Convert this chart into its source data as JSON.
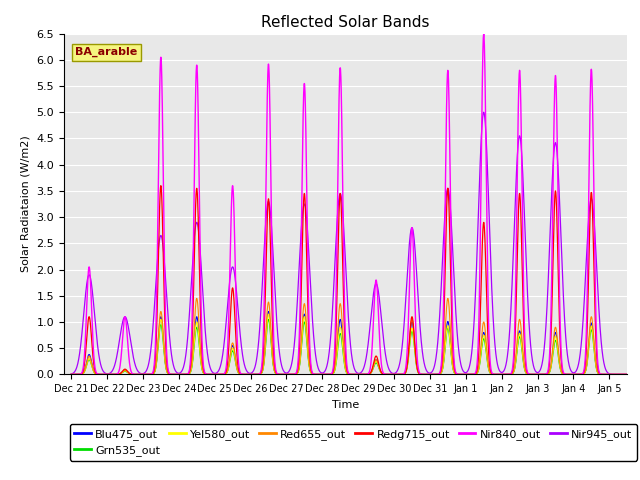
{
  "title": "Reflected Solar Bands",
  "xlabel": "Time",
  "ylabel": "Solar Radiataion (W/m2)",
  "annotation": "BA_arable",
  "ylim": [
    0,
    6.5
  ],
  "background_color": "#e8e8e8",
  "series_order": [
    "Blu475_out",
    "Grn535_out",
    "Yel580_out",
    "Red655_out",
    "Redg715_out",
    "Nir840_out",
    "Nir945_out"
  ],
  "series": {
    "Blu475_out": {
      "color": "#0000ff"
    },
    "Grn535_out": {
      "color": "#00dd00"
    },
    "Yel580_out": {
      "color": "#ffff00"
    },
    "Red655_out": {
      "color": "#ff8800"
    },
    "Redg715_out": {
      "color": "#ff0000"
    },
    "Nir840_out": {
      "color": "#ff00ff"
    },
    "Nir945_out": {
      "color": "#aa00ff"
    }
  },
  "tick_labels": [
    "Dec 21",
    "Dec 22",
    "Dec 23",
    "Dec 24",
    "Dec 25",
    "Dec 26",
    "Dec 27",
    "Dec 28",
    "Dec 29",
    "Dec 30",
    "Dec 31",
    "Jan 1",
    "Jan 2",
    "Jan 3",
    "Jan 4",
    "Jan 5"
  ],
  "sigma_narrow": 0.07,
  "sigma_wide": 0.15,
  "day_peaks": [
    {
      "day": 0,
      "blu": 0.38,
      "grn": 0.28,
      "yel": 0.3,
      "red": 0.35,
      "redg": 1.1,
      "nir840": 2.05,
      "nir945": 1.9
    },
    {
      "day": 1,
      "blu": 0.08,
      "grn": 0.06,
      "yel": 0.07,
      "red": 0.08,
      "redg": 0.1,
      "nir840": 1.1,
      "nir945": 1.1
    },
    {
      "day": 2,
      "blu": 1.1,
      "grn": 0.95,
      "yel": 1.05,
      "red": 1.2,
      "redg": 3.6,
      "nir840": 6.05,
      "nir945": 2.65
    },
    {
      "day": 3,
      "blu": 1.1,
      "grn": 0.9,
      "yel": 1.0,
      "red": 1.45,
      "redg": 3.55,
      "nir840": 5.9,
      "nir945": 2.9
    },
    {
      "day": 4,
      "blu": 0.55,
      "grn": 0.45,
      "yel": 0.5,
      "red": 0.6,
      "redg": 1.65,
      "nir840": 3.6,
      "nir945": 2.05
    },
    {
      "day": 5,
      "blu": 1.2,
      "grn": 1.05,
      "yel": 1.15,
      "red": 1.38,
      "redg": 3.35,
      "nir840": 5.92,
      "nir945": 3.3
    },
    {
      "day": 6,
      "blu": 1.15,
      "grn": 1.0,
      "yel": 1.1,
      "red": 1.35,
      "redg": 3.45,
      "nir840": 5.55,
      "nir945": 3.25
    },
    {
      "day": 7,
      "blu": 1.05,
      "grn": 0.78,
      "yel": 0.9,
      "red": 1.35,
      "redg": 3.45,
      "nir840": 5.85,
      "nir945": 3.45
    },
    {
      "day": 8,
      "blu": 0.28,
      "grn": 0.22,
      "yel": 0.25,
      "red": 0.28,
      "redg": 0.35,
      "nir840": 1.8,
      "nir945": 1.73
    },
    {
      "day": 9,
      "blu": 1.0,
      "grn": 0.82,
      "yel": 0.88,
      "red": 1.05,
      "redg": 1.1,
      "nir840": 2.8,
      "nir945": 2.8
    },
    {
      "day": 10,
      "blu": 1.01,
      "grn": 0.88,
      "yel": 0.93,
      "red": 1.45,
      "redg": 3.55,
      "nir840": 5.8,
      "nir945": 3.55
    },
    {
      "day": 11,
      "blu": 0.8,
      "grn": 0.68,
      "yel": 0.75,
      "red": 1.0,
      "redg": 2.9,
      "nir840": 6.5,
      "nir945": 5.0
    },
    {
      "day": 12,
      "blu": 0.83,
      "grn": 0.72,
      "yel": 0.78,
      "red": 1.05,
      "redg": 3.45,
      "nir840": 5.8,
      "nir945": 4.55
    },
    {
      "day": 13,
      "blu": 0.8,
      "grn": 0.65,
      "yel": 0.73,
      "red": 0.9,
      "redg": 3.5,
      "nir840": 5.7,
      "nir945": 4.42
    },
    {
      "day": 14,
      "blu": 0.98,
      "grn": 0.85,
      "yel": 0.92,
      "red": 1.1,
      "redg": 3.47,
      "nir840": 5.82,
      "nir945": 3.35
    },
    {
      "day": 15,
      "blu": 0.0,
      "grn": 0.0,
      "yel": 0.0,
      "red": 0.0,
      "redg": 0.0,
      "nir840": 0.0,
      "nir945": 0.0
    }
  ]
}
